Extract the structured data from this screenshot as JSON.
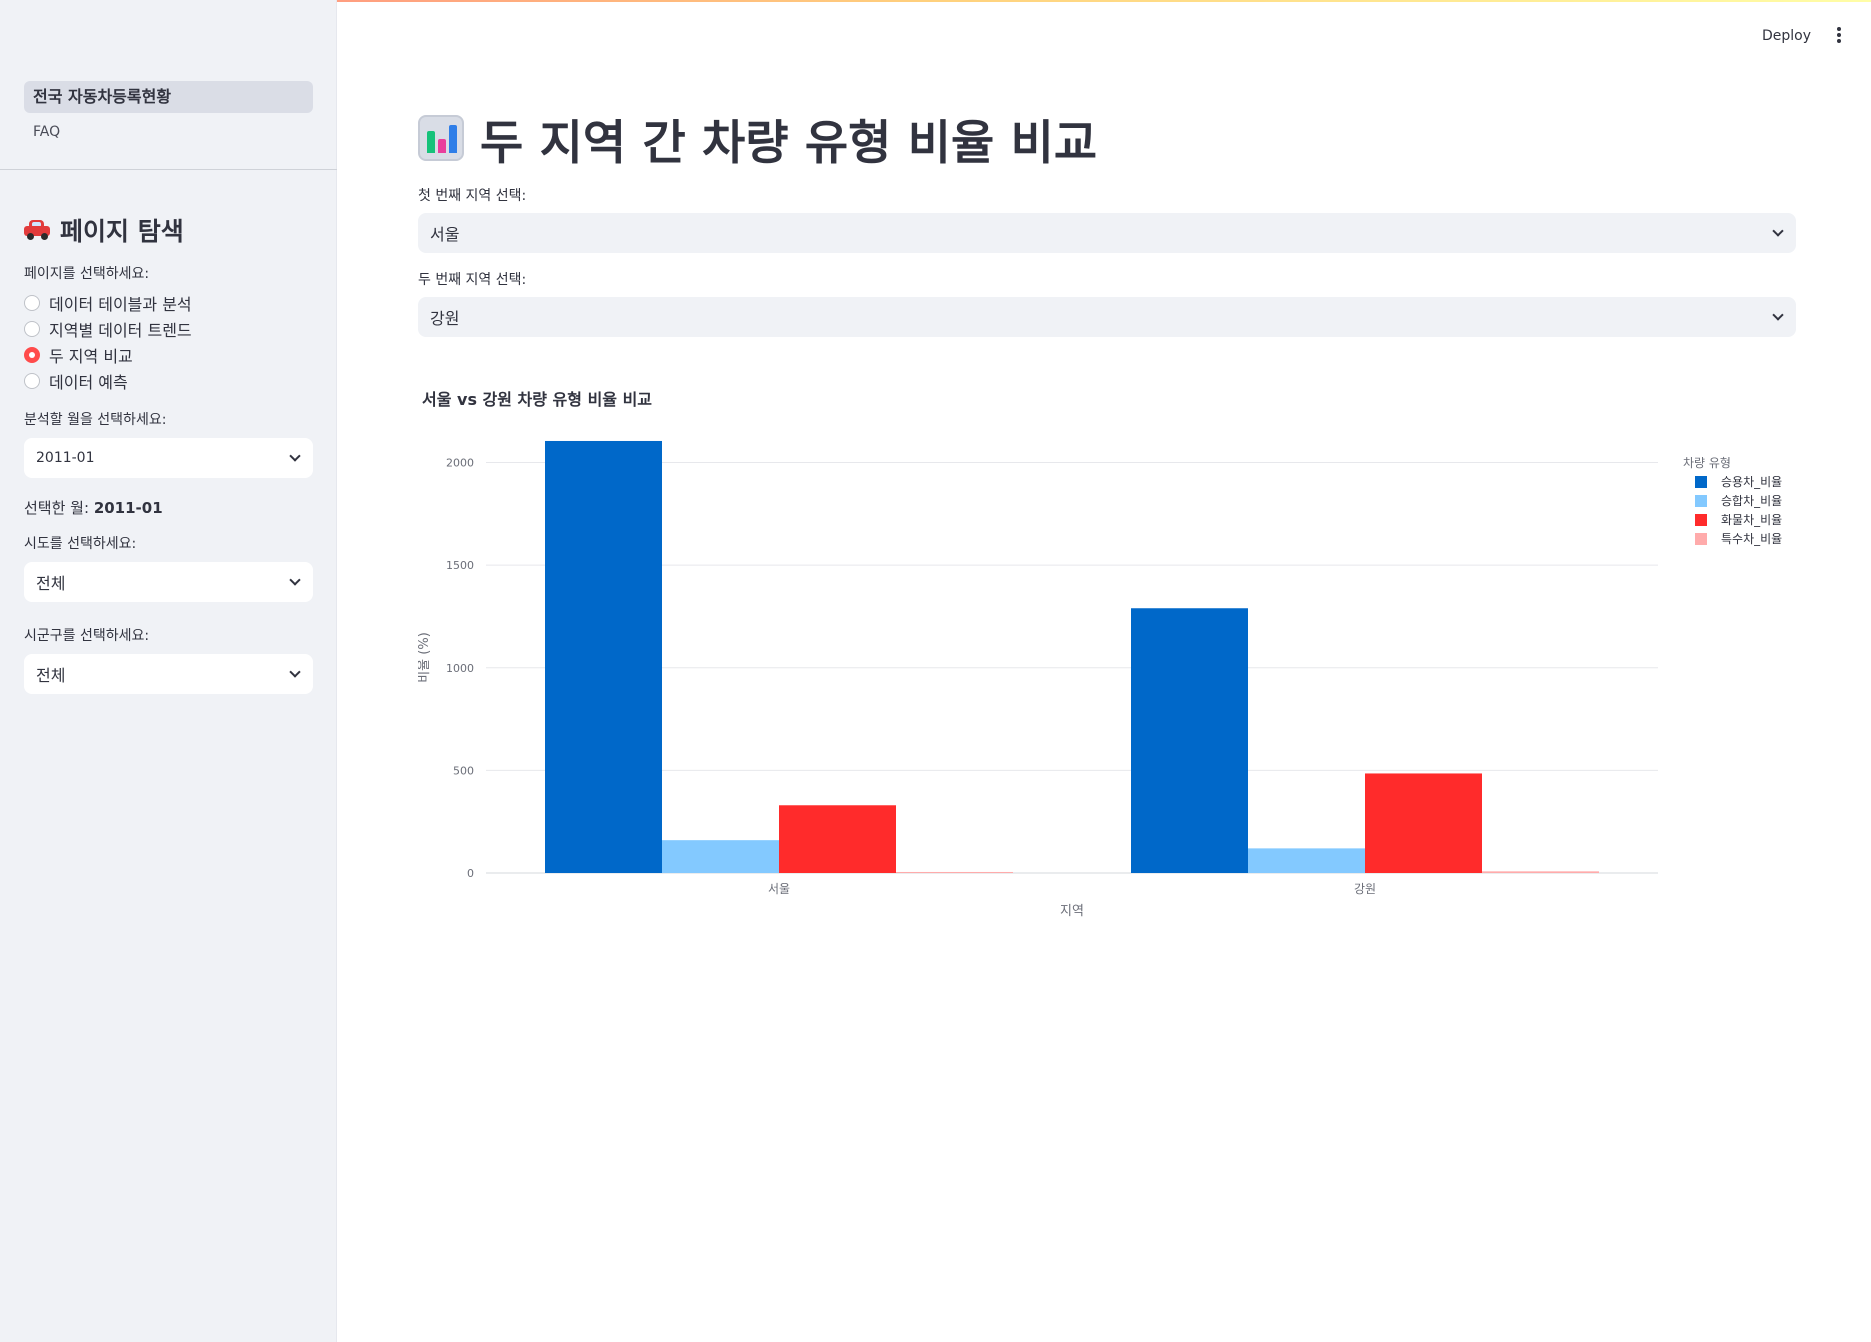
{
  "sidebar": {
    "nav": [
      {
        "label": "전국 자동차등록현황",
        "active": true
      },
      {
        "label": "FAQ",
        "active": false
      }
    ],
    "header": "페이지 탐색",
    "header_icon": "car-icon",
    "page_label": "페이지를 선택하세요:",
    "pages": [
      {
        "label": "데이터 테이블과 분석",
        "checked": false
      },
      {
        "label": "지역별 데이터 트렌드",
        "checked": false
      },
      {
        "label": "두 지역 비교",
        "checked": true
      },
      {
        "label": "데이터 예측",
        "checked": false
      }
    ],
    "month_label": "분석할 월을 선택하세요:",
    "month_value": "2011-01",
    "selected_month_prefix": "선택한 월:",
    "selected_month_value": "2011-01",
    "sido_label": "시도를 선택하세요:",
    "sido_value": "전체",
    "sigungu_label": "시군구를 선택하세요:",
    "sigungu_value": "전체"
  },
  "toolbar": {
    "deploy_label": "Deploy",
    "menu_icon": "kebab-menu-icon"
  },
  "main": {
    "title_icon": "bar-chart-icon",
    "title": "두 지역 간 차량 유형 비율 비교",
    "first_region_label": "첫 번째 지역 선택:",
    "first_region_value": "서울",
    "second_region_label": "두 번째 지역 선택:",
    "second_region_value": "강원",
    "chart_title": "서울 vs 강원 차량 유형 비율 비교"
  },
  "colors": {
    "accent": "#ff4b4b",
    "series": [
      "#0068c9",
      "#83c9ff",
      "#ff2b2b",
      "#ffabab"
    ]
  },
  "chart_data": {
    "type": "bar",
    "title": "서울 vs 강원 차량 유형 비율 비교",
    "xlabel": "지역",
    "ylabel": "비율 (%)",
    "categories": [
      "서울",
      "강원"
    ],
    "legend_title": "차량 유형",
    "legend_position": "top-right",
    "grid": true,
    "ylim": [
      0,
      2100
    ],
    "yticks": [
      0,
      500,
      1000,
      1500,
      2000
    ],
    "series": [
      {
        "name": "승용차_비율",
        "values": [
          2105,
          1290
        ]
      },
      {
        "name": "승합차_비율",
        "values": [
          160,
          120
        ]
      },
      {
        "name": "화물차_비율",
        "values": [
          330,
          485
        ]
      },
      {
        "name": "특수차_비율",
        "values": [
          5,
          8
        ]
      }
    ]
  }
}
